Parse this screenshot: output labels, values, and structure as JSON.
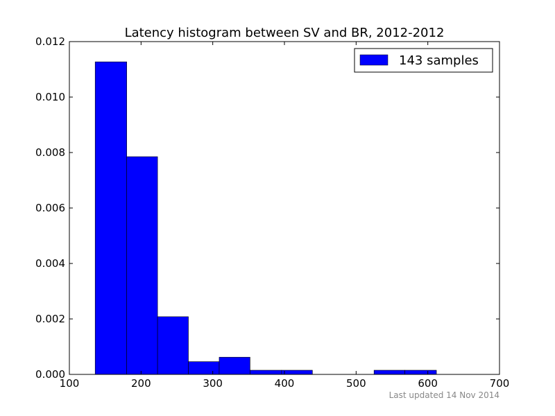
{
  "chart_data": {
    "type": "bar",
    "title": "Latency histogram between SV and BR, 2012-2012",
    "xlabel": "",
    "ylabel": "",
    "xlim": [
      100,
      700
    ],
    "ylim": [
      0,
      0.012
    ],
    "x_ticks": [
      100,
      200,
      300,
      400,
      500,
      600,
      700
    ],
    "x_tick_labels": [
      "100",
      "200",
      "300",
      "400",
      "500",
      "600",
      "700"
    ],
    "y_ticks": [
      0,
      0.002,
      0.004,
      0.006,
      0.008,
      0.01,
      0.012
    ],
    "y_tick_labels": [
      "0.000",
      "0.002",
      "0.004",
      "0.006",
      "0.008",
      "0.010",
      "0.012"
    ],
    "grid": false,
    "legend_position": "top-right",
    "series": [
      {
        "name": "143 samples",
        "color": "#0000ff",
        "bins": [
          {
            "x0": 136,
            "x1": 180,
            "value": 0.01127
          },
          {
            "x0": 180,
            "x1": 223,
            "value": 0.00785
          },
          {
            "x0": 223,
            "x1": 266,
            "value": 0.00208
          },
          {
            "x0": 266,
            "x1": 309,
            "value": 0.00046
          },
          {
            "x0": 309,
            "x1": 352,
            "value": 0.00062
          },
          {
            "x0": 352,
            "x1": 396,
            "value": 0.00015
          },
          {
            "x0": 396,
            "x1": 439,
            "value": 0.00015
          },
          {
            "x0": 439,
            "x1": 482,
            "value": 0
          },
          {
            "x0": 482,
            "x1": 525,
            "value": 0
          },
          {
            "x0": 525,
            "x1": 568,
            "value": 0.00015
          },
          {
            "x0": 568,
            "x1": 612,
            "value": 0.00015
          }
        ]
      }
    ]
  },
  "footer": {
    "last_updated": "Last updated 14 Nov 2014"
  }
}
